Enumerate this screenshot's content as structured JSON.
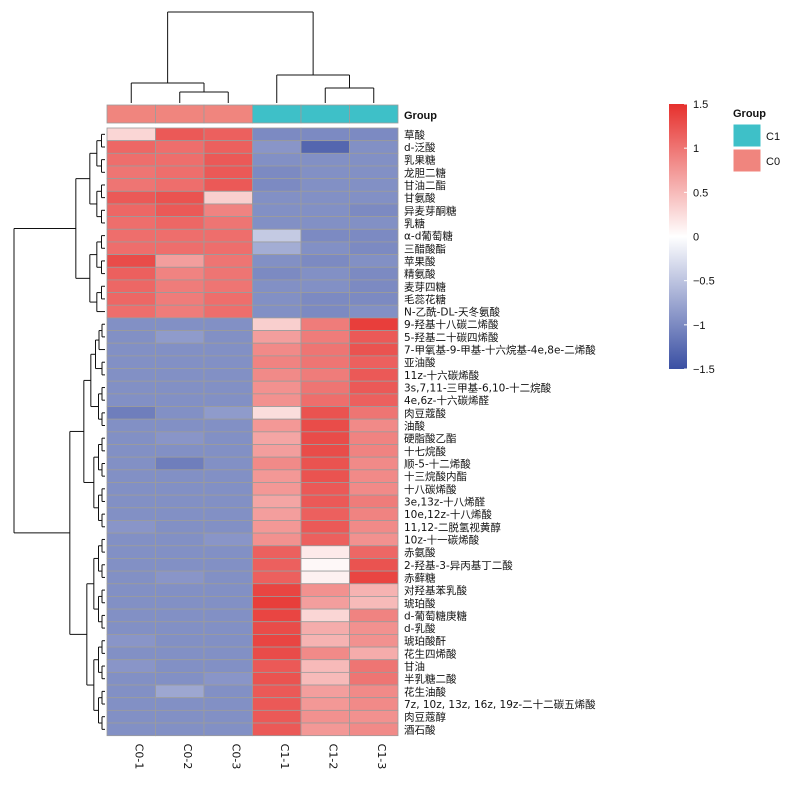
{
  "chart_data": {
    "type": "heatmap",
    "columns": [
      "C0-1",
      "C0-2",
      "C0-3",
      "C1-1",
      "C1-2",
      "C1-3"
    ],
    "column_groups": [
      "C0",
      "C0",
      "C0",
      "C1",
      "C1",
      "C1"
    ],
    "annotation_title": "Group",
    "legend_title": "Group",
    "groups": [
      {
        "name": "C1",
        "color": "#3EC0C8"
      },
      {
        "name": "C0",
        "color": "#F0857E"
      }
    ],
    "color_scale": {
      "ticks": [
        "1.5",
        "1",
        "0.5",
        "0",
        "−0.5",
        "−1",
        "−1.5"
      ],
      "min": -1.5,
      "max": 1.5,
      "low_color": "#3A4FA3",
      "mid_color": "#FFFFFF",
      "high_color": "#E6302D"
    },
    "rows": [
      {
        "label": "草酸",
        "values": [
          0.3,
          1.2,
          1.15,
          -1.0,
          -1.0,
          -1.0
        ]
      },
      {
        "label": "d-泛酸",
        "values": [
          1.1,
          1.05,
          1.15,
          -0.9,
          -1.3,
          -0.95
        ]
      },
      {
        "label": "乳果糖",
        "values": [
          1.05,
          1.05,
          1.2,
          -0.95,
          -0.95,
          -0.95
        ]
      },
      {
        "label": "龙胆二糖",
        "values": [
          1.0,
          1.05,
          1.2,
          -1.0,
          -0.95,
          -0.95
        ]
      },
      {
        "label": "甘油二酯",
        "values": [
          1.0,
          1.05,
          1.2,
          -1.0,
          -0.95,
          -0.95
        ]
      },
      {
        "label": "甘氨酸",
        "values": [
          1.2,
          1.25,
          0.35,
          -0.95,
          -0.95,
          -0.95
        ]
      },
      {
        "label": "异麦芽酮糖",
        "values": [
          1.1,
          1.2,
          0.9,
          -0.95,
          -0.95,
          -1.0
        ]
      },
      {
        "label": "乳糖",
        "values": [
          1.05,
          1.1,
          1.0,
          -0.95,
          -0.95,
          -0.95
        ]
      },
      {
        "label": "α-d葡萄糖",
        "values": [
          1.05,
          1.05,
          1.05,
          -0.45,
          -1.0,
          -1.0
        ]
      },
      {
        "label": "三醋酸酯",
        "values": [
          1.05,
          1.05,
          1.05,
          -0.7,
          -0.95,
          -1.0
        ]
      },
      {
        "label": "苹果酸",
        "values": [
          1.3,
          0.7,
          1.0,
          -0.95,
          -1.0,
          -0.95
        ]
      },
      {
        "label": "精氨酸",
        "values": [
          1.15,
          0.9,
          1.0,
          -1.0,
          -0.95,
          -1.0
        ]
      },
      {
        "label": "麦芽四糖",
        "values": [
          1.1,
          0.95,
          1.0,
          -0.95,
          -0.95,
          -1.0
        ]
      },
      {
        "label": "毛蕊花糖",
        "values": [
          1.1,
          0.95,
          1.05,
          -0.95,
          -1.0,
          -1.0
        ]
      },
      {
        "label": "N-乙酰-DL-天冬氨酸",
        "values": [
          1.05,
          0.95,
          1.05,
          -0.95,
          -1.0,
          -0.95
        ]
      },
      {
        "label": "9-羟基十八碳二烯酸",
        "values": [
          -0.95,
          -0.95,
          -0.95,
          0.35,
          0.95,
          1.4
        ]
      },
      {
        "label": "5-羟基二十碳四烯酸",
        "values": [
          -0.95,
          -0.85,
          -0.95,
          0.7,
          0.95,
          1.2
        ]
      },
      {
        "label": "7-甲氧基-9-甲基-十六烷基-4e,8e-二烯酸",
        "values": [
          -0.95,
          -0.95,
          -0.95,
          0.85,
          1.0,
          1.25
        ]
      },
      {
        "label": "亚油酸",
        "values": [
          -0.95,
          -0.95,
          -0.95,
          0.9,
          1.0,
          1.15
        ]
      },
      {
        "label": "11z-十六碳烯酸",
        "values": [
          -0.95,
          -0.95,
          -0.95,
          0.85,
          0.95,
          1.2
        ]
      },
      {
        "label": "3s,7,11-三甲基-6,10-十二烷酸",
        "values": [
          -0.95,
          -0.95,
          -0.95,
          0.8,
          1.0,
          1.2
        ]
      },
      {
        "label": "4e,6z-十六碳烯醛",
        "values": [
          -0.95,
          -0.95,
          -0.95,
          0.8,
          1.05,
          1.15
        ]
      },
      {
        "label": "肉豆蔻酸",
        "values": [
          -1.1,
          -0.95,
          -0.85,
          0.25,
          1.25,
          1.0
        ]
      },
      {
        "label": "油酸",
        "values": [
          -0.95,
          -0.95,
          -0.95,
          0.75,
          1.3,
          0.85
        ]
      },
      {
        "label": "硬脂酸乙酯",
        "values": [
          -0.95,
          -0.9,
          -0.95,
          0.65,
          1.3,
          0.9
        ]
      },
      {
        "label": "十七烷酸",
        "values": [
          -0.95,
          -0.95,
          -0.95,
          0.7,
          1.3,
          0.9
        ]
      },
      {
        "label": "顺-5-十二烯酸",
        "values": [
          -0.95,
          -1.1,
          -0.95,
          0.85,
          1.25,
          0.85
        ]
      },
      {
        "label": "十三烷酸内酯",
        "values": [
          -0.95,
          -0.95,
          -0.95,
          0.75,
          1.25,
          0.85
        ]
      },
      {
        "label": "十八碳烯酸",
        "values": [
          -0.95,
          -0.95,
          -0.95,
          0.75,
          1.2,
          0.85
        ]
      },
      {
        "label": "3e,13z-十八烯醛",
        "values": [
          -0.95,
          -0.95,
          -0.95,
          0.65,
          1.2,
          0.95
        ]
      },
      {
        "label": "10e,12z-十八烯酸",
        "values": [
          -0.95,
          -0.95,
          -0.95,
          0.7,
          1.15,
          0.9
        ]
      },
      {
        "label": "11,12-二脱氢视黄醇",
        "values": [
          -0.9,
          -0.95,
          -0.95,
          0.75,
          1.2,
          0.85
        ]
      },
      {
        "label": "10z-十一碳烯酸",
        "values": [
          -0.95,
          -0.95,
          -0.9,
          0.8,
          1.15,
          0.8
        ]
      },
      {
        "label": "赤氨酸",
        "values": [
          -0.95,
          -0.95,
          -0.95,
          1.15,
          0.15,
          1.1
        ]
      },
      {
        "label": "2-羟基-3-异丙基丁二酸",
        "values": [
          -0.95,
          -0.95,
          -0.95,
          1.15,
          0.05,
          1.25
        ]
      },
      {
        "label": "赤藓糖",
        "values": [
          -0.95,
          -0.9,
          -0.95,
          1.15,
          0.1,
          1.35
        ]
      },
      {
        "label": "对羟基苯乳酸",
        "values": [
          -0.95,
          -0.95,
          -0.95,
          1.35,
          0.8,
          0.55
        ]
      },
      {
        "label": "琥珀酸",
        "values": [
          -0.95,
          -0.95,
          -0.95,
          1.4,
          0.7,
          0.5
        ]
      },
      {
        "label": "d-葡萄糖庚糖",
        "values": [
          -0.95,
          -0.95,
          -0.95,
          1.35,
          0.3,
          0.9
        ]
      },
      {
        "label": "d-乳酸",
        "values": [
          -0.95,
          -0.95,
          -0.95,
          1.3,
          0.6,
          0.8
        ]
      },
      {
        "label": "琥珀酸酐",
        "values": [
          -0.9,
          -0.95,
          -0.95,
          1.35,
          0.55,
          0.8
        ]
      },
      {
        "label": "花生四烯酸",
        "values": [
          -0.95,
          -0.95,
          -0.95,
          1.3,
          0.85,
          0.6
        ]
      },
      {
        "label": "甘油",
        "values": [
          -0.9,
          -0.95,
          -0.95,
          1.2,
          0.5,
          1.0
        ]
      },
      {
        "label": "半乳糖二酸",
        "values": [
          -0.95,
          -0.95,
          -0.9,
          1.25,
          0.5,
          1.0
        ]
      },
      {
        "label": "花生油酸",
        "values": [
          -0.95,
          -0.75,
          -0.95,
          1.2,
          0.7,
          0.85
        ]
      },
      {
        "label": "7z, 10z, 13z, 16z, 19z-二十二碳五烯酸",
        "values": [
          -0.95,
          -0.95,
          -0.95,
          1.2,
          0.75,
          0.85
        ]
      },
      {
        "label": "肉豆蔻醇",
        "values": [
          -0.95,
          -0.95,
          -0.95,
          1.2,
          0.8,
          0.8
        ]
      },
      {
        "label": "酒石酸",
        "values": [
          -0.95,
          -0.95,
          -0.95,
          1.2,
          0.75,
          0.85
        ]
      }
    ]
  }
}
